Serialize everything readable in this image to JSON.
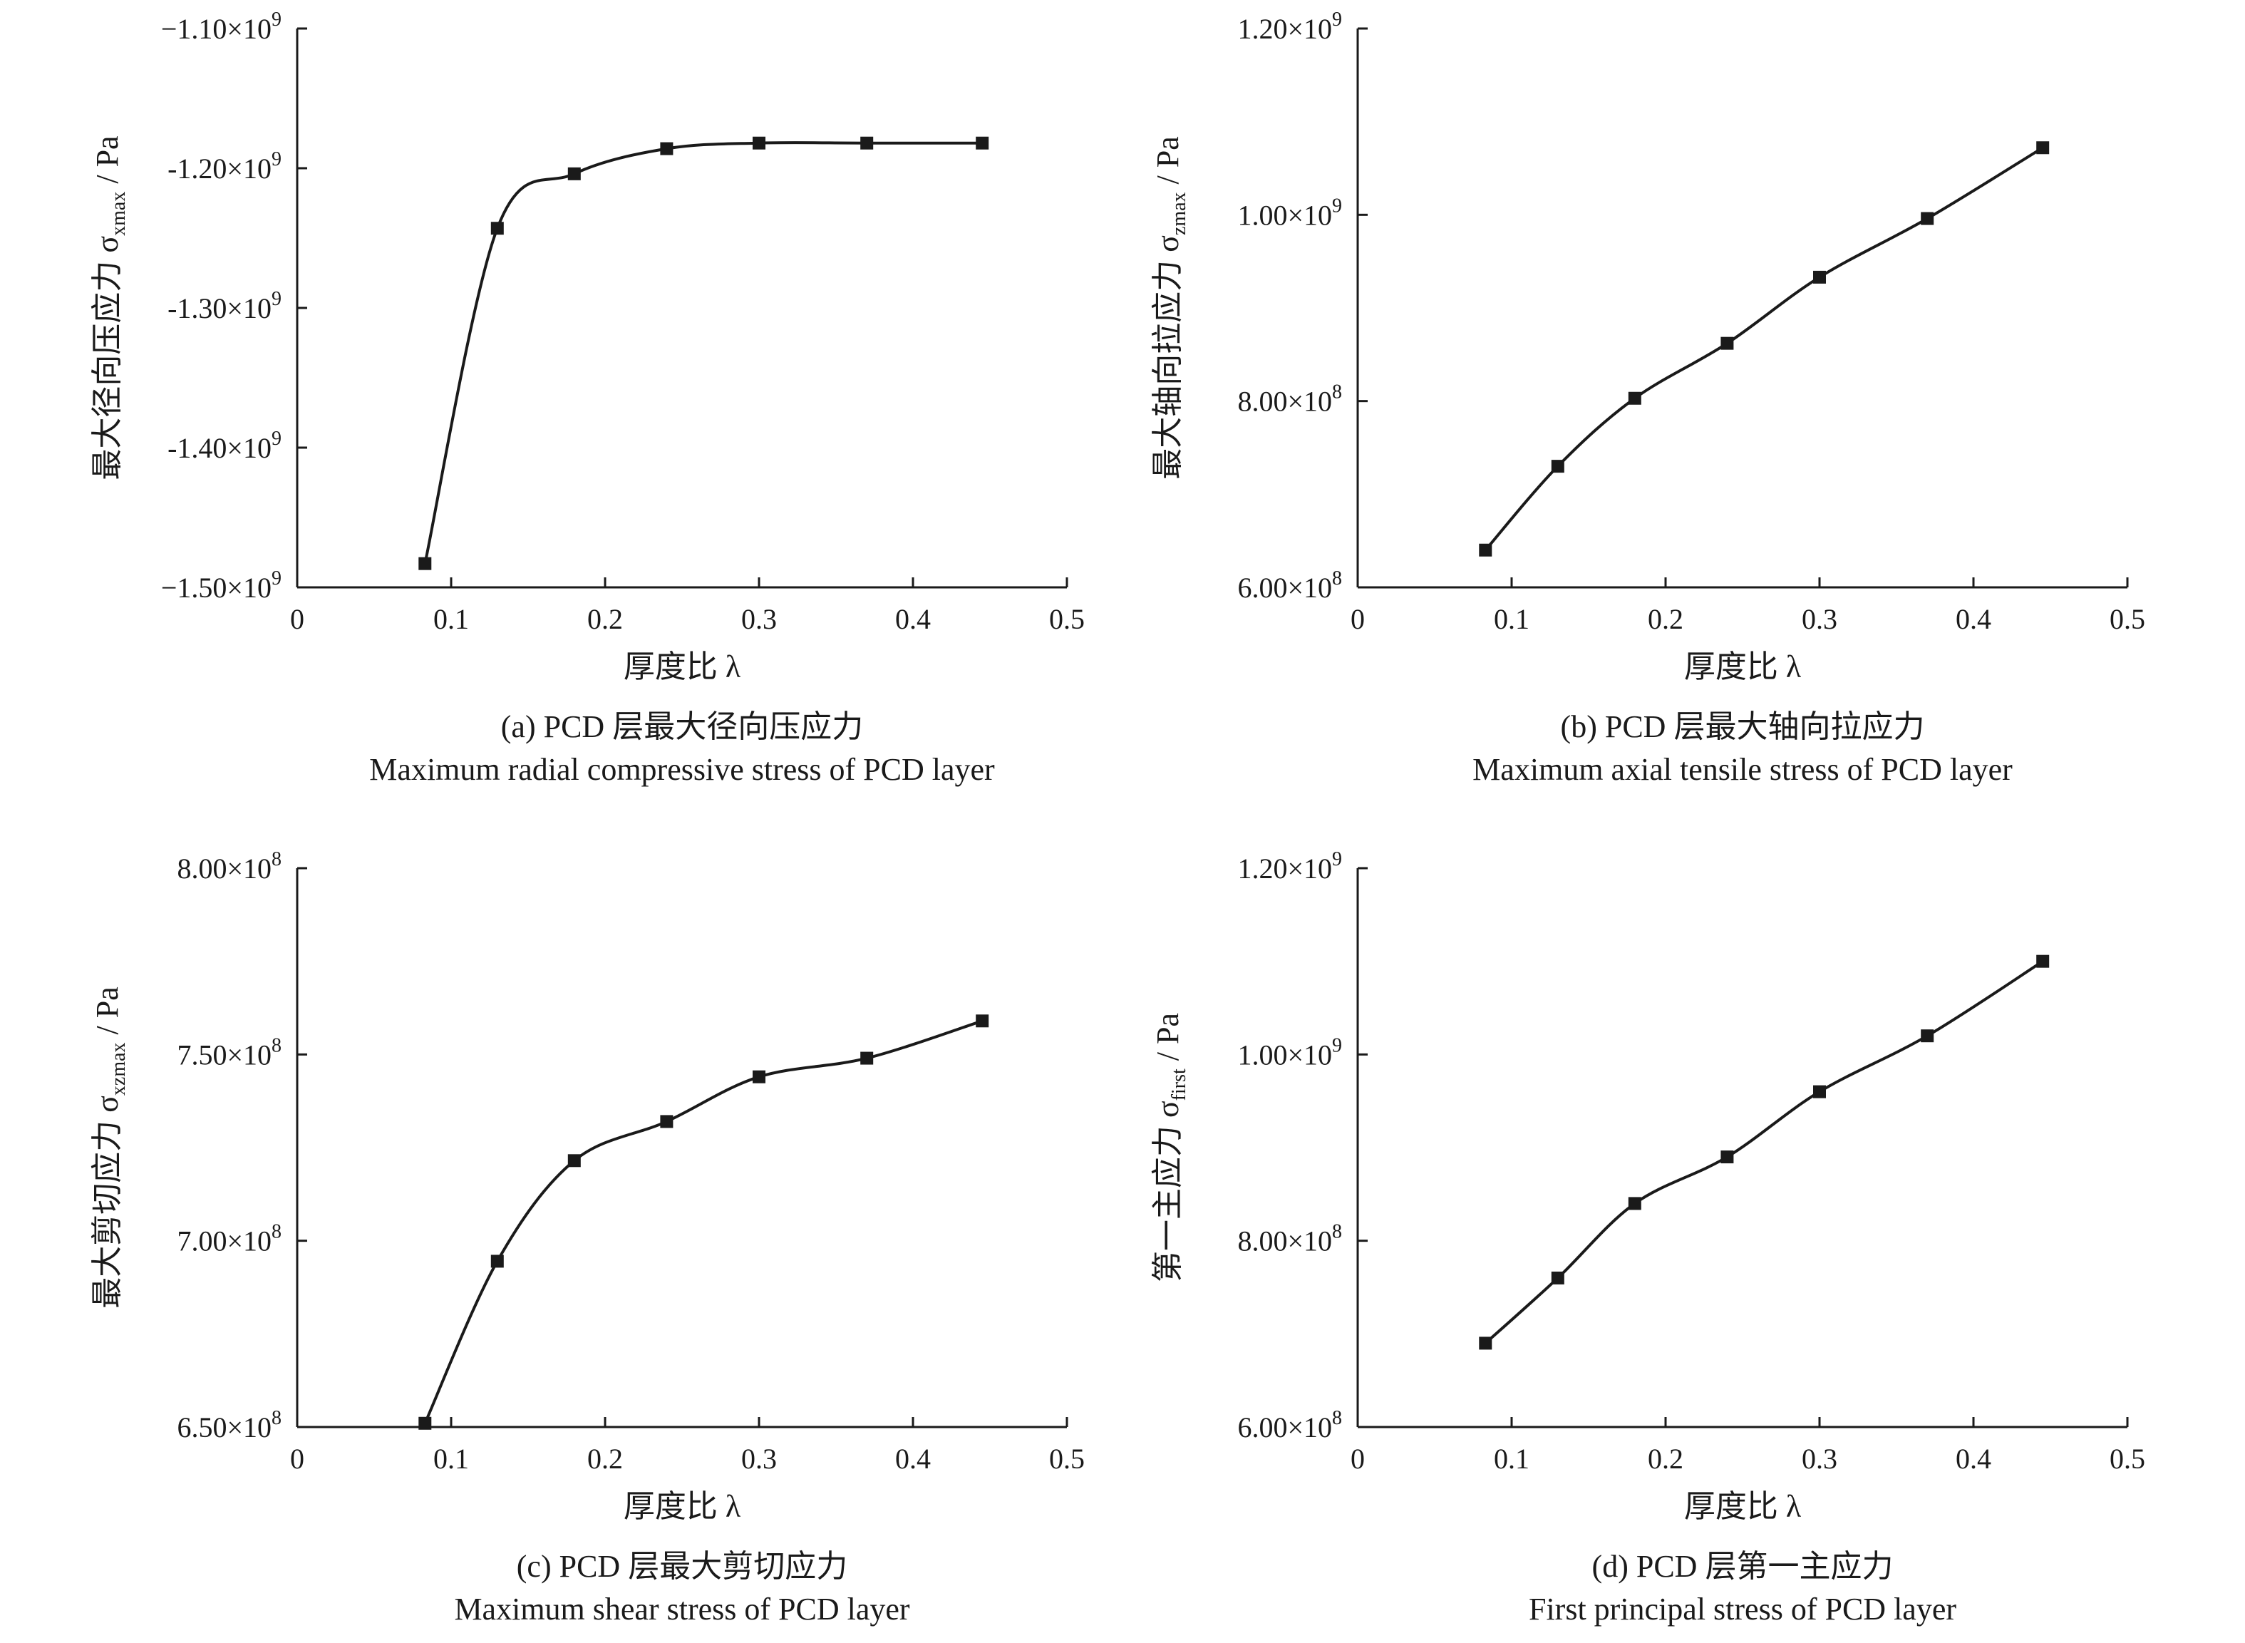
{
  "chart_data": [
    {
      "type": "line",
      "caption_cn": "(a) PCD 层最大径向压应力",
      "caption_en": "Maximum radial compressive stress of PCD layer",
      "xlabel": "厚度比 λ",
      "ylabel_prefix": "最大径向压应力 σ",
      "ylabel_sub": "xmax",
      "ylabel_suffix": " / Pa",
      "xlim": [
        0,
        0.5
      ],
      "xticks": [
        0,
        0.1,
        0.2,
        0.3,
        0.4,
        0.5
      ],
      "xtick_labels": [
        "0",
        "0.1",
        "0.2",
        "0.3",
        "0.4",
        "0.5"
      ],
      "ylim": [
        -1500000000.0,
        -1100000000.0
      ],
      "yticks": [
        -1500000000.0,
        -1400000000.0,
        -1300000000.0,
        -1200000000.0,
        -1100000000.0
      ],
      "ytick_labels": [
        "−1.50×10",
        "-1.40×10",
        "-1.30×10",
        "-1.20×10",
        "−1.10×10"
      ],
      "ytick_exps": [
        "9",
        "9",
        "9",
        "9",
        "9"
      ],
      "x": [
        0.083,
        0.13,
        0.18,
        0.24,
        0.3,
        0.37,
        0.445
      ],
      "y": [
        -1483000000.0,
        -1243000000.0,
        -1204000000.0,
        -1186000000.0,
        -1182000000.0,
        -1182000000.0,
        -1182000000.0
      ]
    },
    {
      "type": "line",
      "caption_cn": "(b) PCD 层最大轴向拉应力",
      "caption_en": "Maximum axial tensile stress of PCD layer",
      "xlabel": "厚度比 λ",
      "ylabel_prefix": "最大轴向拉应力 σ",
      "ylabel_sub": "zmax",
      "ylabel_suffix": " / Pa",
      "xlim": [
        0,
        0.5
      ],
      "xticks": [
        0,
        0.1,
        0.2,
        0.3,
        0.4,
        0.5
      ],
      "xtick_labels": [
        "0",
        "0.1",
        "0.2",
        "0.3",
        "0.4",
        "0.5"
      ],
      "ylim": [
        600000000.0,
        1200000000.0
      ],
      "yticks": [
        600000000.0,
        800000000.0,
        1000000000.0,
        1200000000.0
      ],
      "ytick_labels": [
        "6.00×10",
        "8.00×10",
        "1.00×10",
        "1.20×10"
      ],
      "ytick_exps": [
        "8",
        "8",
        "9",
        "9"
      ],
      "x": [
        0.083,
        0.13,
        0.18,
        0.24,
        0.3,
        0.37,
        0.445
      ],
      "y": [
        640000000.0,
        730000000.0,
        803000000.0,
        862000000.0,
        933000000.0,
        996000000.0,
        1072000000.0
      ]
    },
    {
      "type": "line",
      "caption_cn": "(c) PCD 层最大剪切应力",
      "caption_en": "Maximum shear stress of PCD layer",
      "xlabel": "厚度比 λ",
      "ylabel_prefix": "最大剪切应力 σ",
      "ylabel_sub": "xzmax",
      "ylabel_suffix": " / Pa",
      "xlim": [
        0,
        0.5
      ],
      "xticks": [
        0,
        0.1,
        0.2,
        0.3,
        0.4,
        0.5
      ],
      "xtick_labels": [
        "0",
        "0.1",
        "0.2",
        "0.3",
        "0.4",
        "0.5"
      ],
      "ylim": [
        650000000.0,
        800000000.0
      ],
      "yticks": [
        650000000.0,
        700000000.0,
        750000000.0,
        800000000.0
      ],
      "ytick_labels": [
        "6.50×10",
        "7.00×10",
        "7.50×10",
        "8.00×10"
      ],
      "ytick_exps": [
        "8",
        "8",
        "8",
        "8"
      ],
      "x": [
        0.083,
        0.13,
        0.18,
        0.24,
        0.3,
        0.37,
        0.445
      ],
      "y": [
        651000000.0,
        694500000.0,
        721500000.0,
        732000000.0,
        744000000.0,
        749000000.0,
        759000000.0
      ]
    },
    {
      "type": "line",
      "caption_cn": "(d) PCD 层第一主应力",
      "caption_en": "First principal stress of PCD layer",
      "xlabel": "厚度比 λ",
      "ylabel_prefix": "第一主应力 σ",
      "ylabel_sub": "first",
      "ylabel_suffix": " / Pa",
      "xlim": [
        0,
        0.5
      ],
      "xticks": [
        0,
        0.1,
        0.2,
        0.3,
        0.4,
        0.5
      ],
      "xtick_labels": [
        "0",
        "0.1",
        "0.2",
        "0.3",
        "0.4",
        "0.5"
      ],
      "ylim": [
        600000000.0,
        1200000000.0
      ],
      "yticks": [
        600000000.0,
        800000000.0,
        1000000000.0,
        1200000000.0
      ],
      "ytick_labels": [
        "6.00×10",
        "8.00×10",
        "1.00×10",
        "1.20×10"
      ],
      "ytick_exps": [
        "8",
        "8",
        "9",
        "9"
      ],
      "x": [
        0.083,
        0.13,
        0.18,
        0.24,
        0.3,
        0.37,
        0.445
      ],
      "y": [
        690000000.0,
        760000000.0,
        840000000.0,
        890000000.0,
        960000000.0,
        1020000000.0,
        1100000000.0
      ]
    }
  ]
}
